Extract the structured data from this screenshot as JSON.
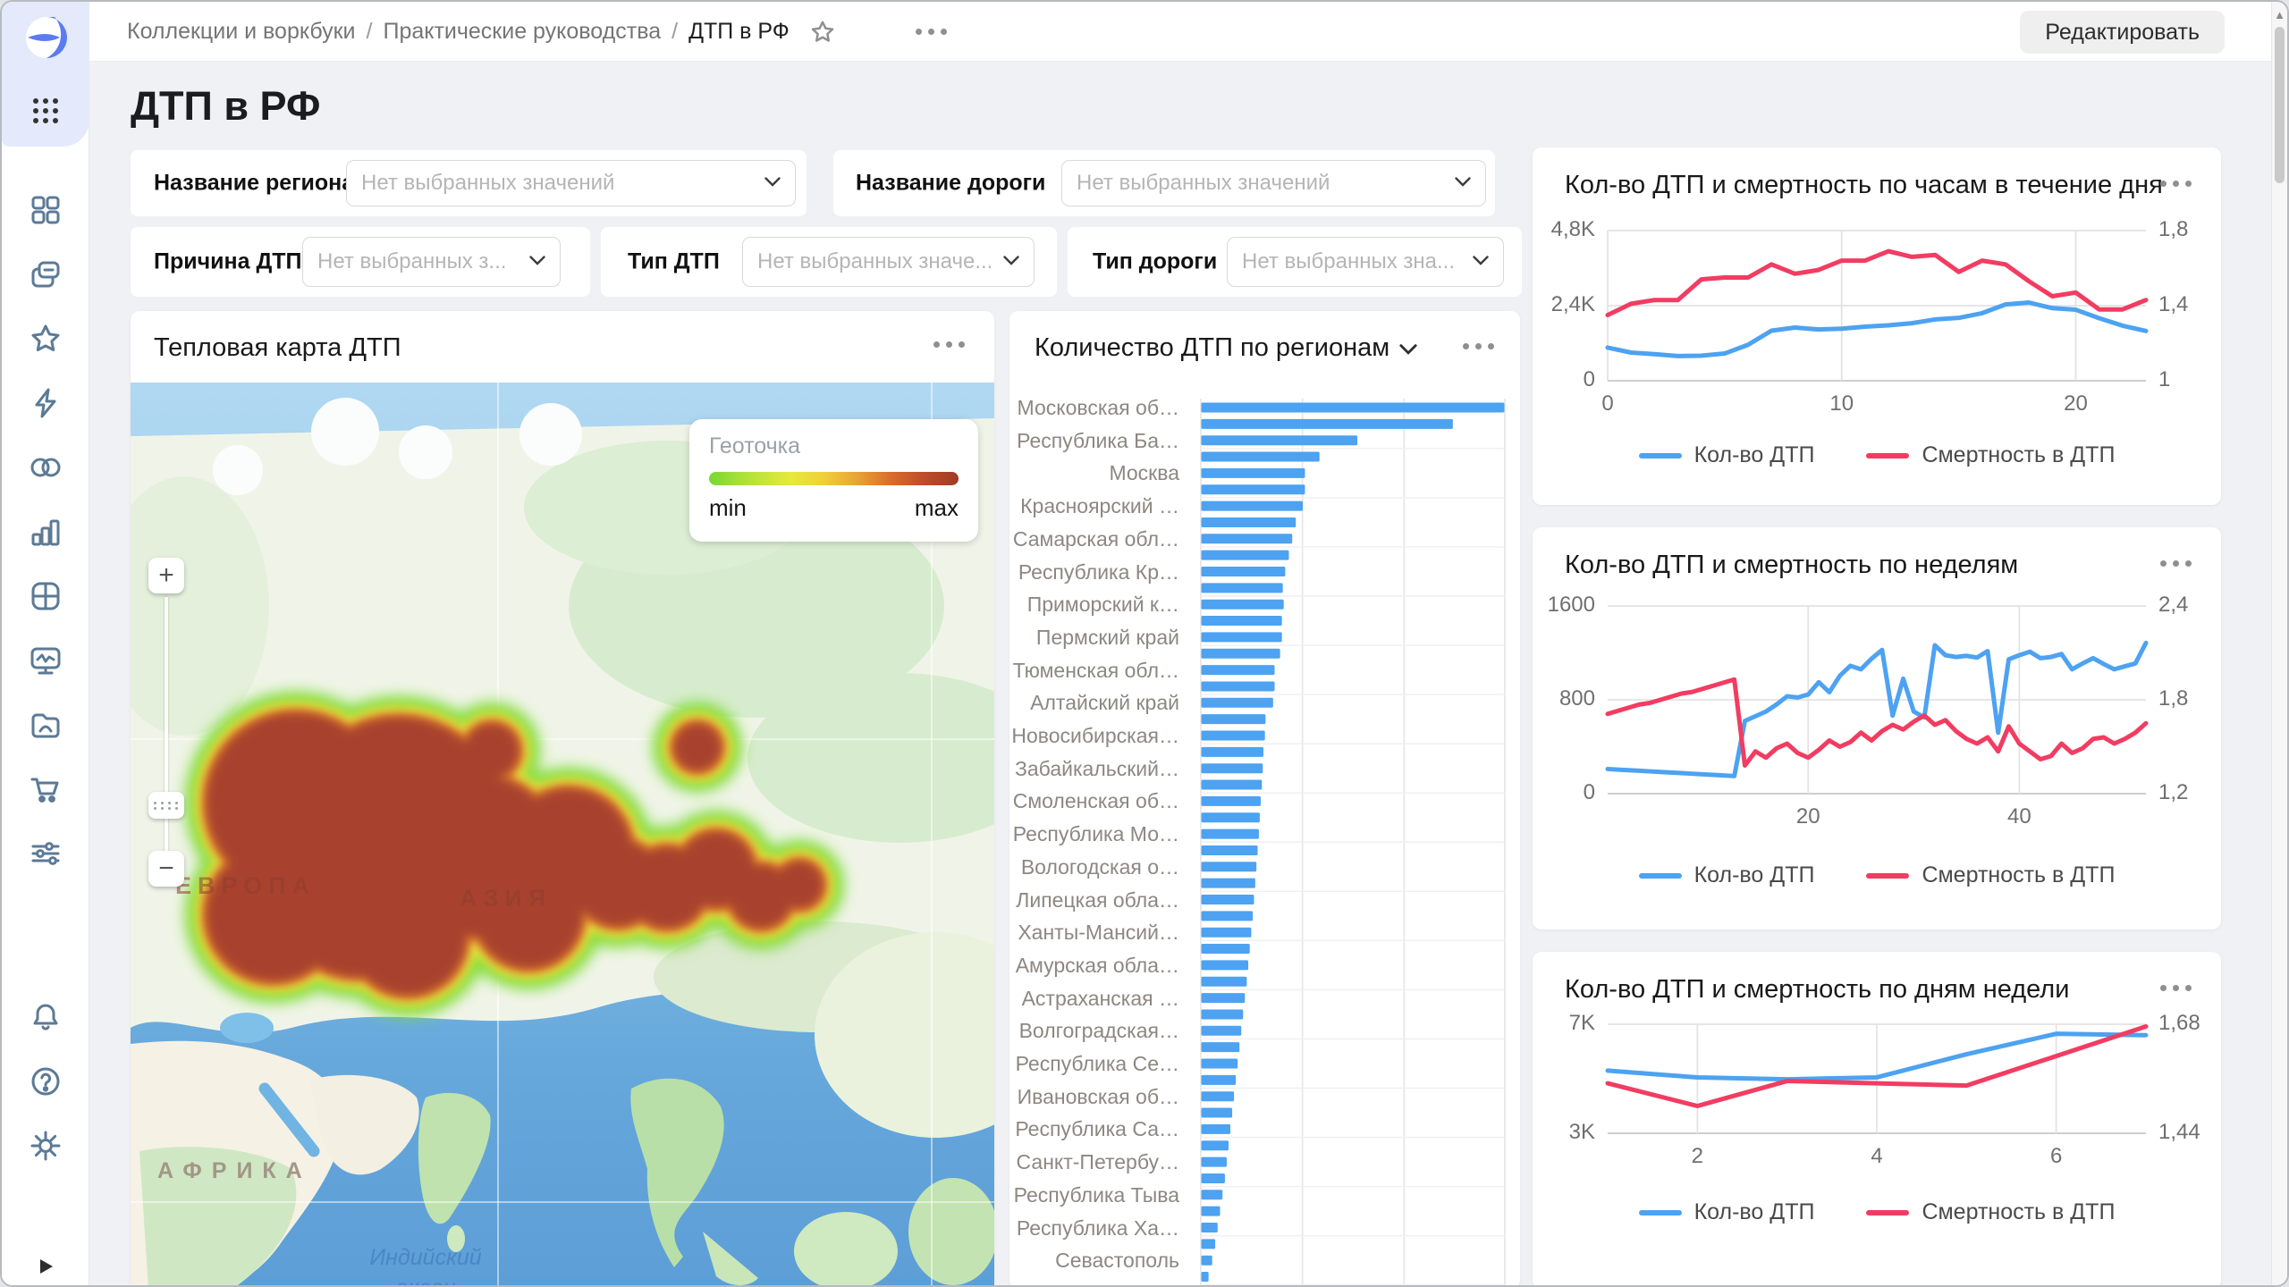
{
  "breadcrumb": {
    "items": [
      "Коллекции и воркбуки",
      "Практические руководства",
      "ДТП в РФ"
    ],
    "separator": "/"
  },
  "header": {
    "edit_button": "Редактировать"
  },
  "page": {
    "title": "ДТП в РФ"
  },
  "sidebar": {
    "icons": [
      "datalens-logo",
      "apps-grid",
      "widgets",
      "collections",
      "favorites",
      "lightning",
      "connections",
      "charts",
      "table",
      "dashboard",
      "gallery-folder",
      "marketplace-cart",
      "settings-sliders",
      "bell",
      "help",
      "gear",
      "expand-play"
    ]
  },
  "filters": [
    {
      "label": "Название региона",
      "placeholder": "Нет выбранных значений"
    },
    {
      "label": "Название дороги",
      "placeholder": "Нет выбранных значений"
    },
    {
      "label": "Причина ДТП",
      "placeholder": "Нет выбранных з..."
    },
    {
      "label": "Тип ДТП",
      "placeholder": "Нет выбранных значе..."
    },
    {
      "label": "Тип дороги",
      "placeholder": "Нет выбранных зна..."
    }
  ],
  "heatmap_card": {
    "title": "Тепловая карта ДТП",
    "legend": {
      "title": "Геоточка",
      "min": "min",
      "max": "max"
    },
    "map_labels": {
      "europe": "ЕВРОПА",
      "asia": "АЗИЯ",
      "africa": "АФРИКА",
      "ocean_line1": "Индийский",
      "ocean_line2": "океан"
    },
    "controls": {
      "zoom_in": "+",
      "zoom_out": "−"
    }
  },
  "colors": {
    "accent_blue": "#4da2f1",
    "accent_red": "#f23c61",
    "heat_core": "#a8432d",
    "heat_yellow": "#ece43c",
    "heat_green": "#7edc3b"
  },
  "chart_data": [
    {
      "type": "bar",
      "orientation": "horizontal",
      "title": "Количество ДТП по регионам",
      "bar_color": "#4da2f1",
      "bars_per_label": 2,
      "categories_visible": [
        "Московская об…",
        "Республика Ба…",
        "Москва",
        "Красноярский …",
        "Самарская обл…",
        "Республика Кр…",
        "Приморский к…",
        "Пермский край",
        "Тюменская обл…",
        "Алтайский край",
        "Новосибирская…",
        "Забайкальский…",
        "Смоленская об…",
        "Республика Мо…",
        "Вологодская о…",
        "Липецкая обла…",
        "Ханты-Мансий…",
        "Амурская обла…",
        "Астраханская …",
        "Волгоградская…",
        "Республика Се…",
        "Ивановская об…",
        "Республика Са…",
        "Санкт-Петербу…",
        "Республика Тыва",
        "Республика Ха…",
        "Севастополь"
      ],
      "values_pct_of_max": [
        100,
        83,
        51.5,
        39,
        34.2,
        34.2,
        33.5,
        31.2,
        30,
        28.9,
        27.7,
        26.9,
        27.2,
        26.6,
        26.6,
        26,
        24.2,
        24.2,
        23.7,
        21.2,
        21,
        20.5,
        20.3,
        20,
        19.6,
        19.3,
        19,
        18.6,
        18.2,
        17.8,
        17.4,
        17,
        16.5,
        16,
        15.5,
        15,
        14.4,
        13.8,
        13.2,
        12.6,
        12,
        11.4,
        10.8,
        10.2,
        9.6,
        9,
        8.4,
        7.8,
        7,
        6.2,
        5.4,
        4.6,
        3.6,
        2.4
      ],
      "note": "value axis labels cut off below viewport; values are % of longest bar"
    },
    {
      "type": "line",
      "title": "Кол-во ДТП и смертность по часам в течение дня",
      "x_range": [
        0,
        23
      ],
      "xticks": [
        0,
        10,
        20
      ],
      "left_axis": {
        "ticks": [
          "4,8K",
          "2,4K",
          "0"
        ],
        "range": [
          0,
          4800
        ]
      },
      "right_axis": {
        "ticks": [
          "1,8",
          "1,4",
          "1"
        ],
        "range": [
          1,
          1.8
        ]
      },
      "series": [
        {
          "name": "Кол-во ДТП",
          "axis": "left",
          "color": "#4da2f1",
          "values": [
            1060,
            900,
            850,
            790,
            800,
            870,
            1150,
            1600,
            1700,
            1640,
            1665,
            1730,
            1770,
            1840,
            1960,
            2010,
            2160,
            2440,
            2500,
            2320,
            2270,
            2000,
            1760,
            1590
          ]
        },
        {
          "name": "Смертность в ДТП",
          "axis": "right",
          "color": "#f23c61",
          "values": [
            1.35,
            1.41,
            1.43,
            1.43,
            1.54,
            1.55,
            1.55,
            1.62,
            1.57,
            1.59,
            1.64,
            1.64,
            1.69,
            1.66,
            1.67,
            1.58,
            1.64,
            1.62,
            1.53,
            1.45,
            1.47,
            1.38,
            1.38,
            1.43
          ]
        }
      ]
    },
    {
      "type": "line",
      "title": "Кол-во ДТП и смертность по неделям",
      "x_range": [
        1,
        52
      ],
      "xticks": [
        20,
        40
      ],
      "left_axis": {
        "ticks": [
          "1600",
          "800",
          "0"
        ],
        "range": [
          0,
          1600
        ]
      },
      "right_axis": {
        "ticks": [
          "2,4",
          "1,8",
          "1,2"
        ],
        "range": [
          1.2,
          2.4
        ]
      },
      "series": [
        {
          "name": "Кол-во ДТП",
          "axis": "left",
          "color": "#4da2f1",
          "values": [
            210,
            205,
            200,
            195,
            190,
            185,
            180,
            175,
            170,
            165,
            160,
            155,
            150,
            620,
            660,
            700,
            760,
            830,
            820,
            845,
            950,
            865,
            1005,
            1090,
            1060,
            1150,
            1225,
            665,
            980,
            700,
            650,
            1265,
            1180,
            1165,
            1175,
            1160,
            1215,
            520,
            1145,
            1180,
            1210,
            1155,
            1165,
            1190,
            1060,
            1110,
            1155,
            1105,
            1060,
            1085,
            1110,
            1285
          ]
        },
        {
          "name": "Смертность в ДТП",
          "axis": "right",
          "color": "#f23c61",
          "values": [
            1.71,
            1.73,
            1.75,
            1.77,
            1.78,
            1.8,
            1.82,
            1.84,
            1.85,
            1.87,
            1.89,
            1.91,
            1.93,
            1.38,
            1.47,
            1.43,
            1.49,
            1.52,
            1.46,
            1.43,
            1.48,
            1.54,
            1.5,
            1.53,
            1.59,
            1.54,
            1.6,
            1.64,
            1.61,
            1.66,
            1.7,
            1.64,
            1.67,
            1.6,
            1.55,
            1.52,
            1.56,
            1.47,
            1.63,
            1.52,
            1.47,
            1.42,
            1.44,
            1.52,
            1.46,
            1.49,
            1.55,
            1.56,
            1.52,
            1.55,
            1.59,
            1.65
          ]
        }
      ]
    },
    {
      "type": "line",
      "title": "Кол-во ДТП и смертность по дням недели",
      "x_range": [
        1,
        7
      ],
      "xticks": [
        2,
        4,
        6
      ],
      "left_axis": {
        "ticks": [
          "7K",
          "3K"
        ],
        "range": [
          3000,
          7000
        ]
      },
      "right_axis": {
        "ticks": [
          "1,68",
          "1,44"
        ],
        "range": [
          1.44,
          1.68
        ]
      },
      "series": [
        {
          "name": "Кол-во ДТП",
          "axis": "left",
          "color": "#4da2f1",
          "values": [
            5300,
            5050,
            4980,
            5050,
            5900,
            6650,
            6600
          ]
        },
        {
          "name": "Смертность в ДТП",
          "axis": "right",
          "color": "#f23c61",
          "values": [
            1.55,
            1.5,
            1.555,
            1.55,
            1.545,
            1.61,
            1.675
          ]
        }
      ]
    }
  ]
}
